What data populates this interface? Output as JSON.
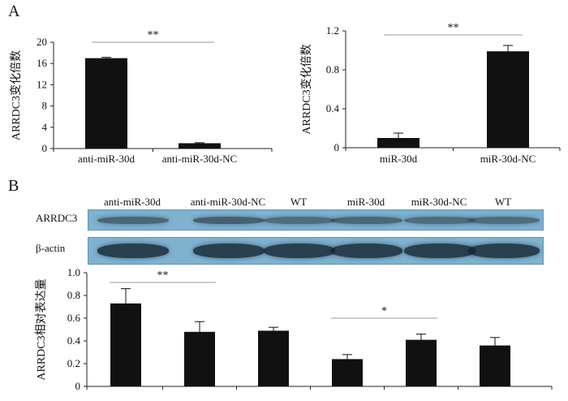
{
  "panel_labels": {
    "a": "A",
    "b": "B"
  },
  "blot": {
    "lanes": [
      "anti-miR-30d",
      "anti-miR-30d-NC",
      "WT",
      "miR-30d",
      "miR-30d-NC",
      "WT"
    ],
    "rows": [
      {
        "label": "ARRDC3",
        "band_intensity": [
          0.55,
          0.6,
          0.5,
          0.55,
          0.5,
          0.5
        ]
      },
      {
        "label": "β-actin",
        "band_intensity": [
          0.85,
          0.85,
          0.85,
          0.85,
          0.85,
          0.85
        ]
      }
    ]
  },
  "chart_data": [
    {
      "type": "bar",
      "panel": "A-left",
      "categories": [
        "anti-miR-30d",
        "anti-miR-30d-NC"
      ],
      "values": [
        17,
        1
      ],
      "errors": [
        0.15,
        0.1
      ],
      "ylabel": "ARRDC3变化倍数",
      "xlabel": "",
      "ylim": [
        0,
        20
      ],
      "yticks": [
        "0",
        "4",
        "8",
        "12",
        "16",
        "20"
      ],
      "significance": [
        {
          "from": 0,
          "to": 1,
          "label": "**"
        }
      ],
      "grid": false
    },
    {
      "type": "bar",
      "panel": "A-right",
      "categories": [
        "miR-30d",
        "miR-30d-NC"
      ],
      "values": [
        0.1,
        0.99
      ],
      "errors": [
        0.05,
        0.06
      ],
      "ylabel": "ARRDC3变化倍数",
      "xlabel": "",
      "ylim": [
        0,
        1.2
      ],
      "yticks": [
        "0",
        "0.4",
        "0.8",
        "1.2"
      ],
      "significance": [
        {
          "from": 0,
          "to": 1,
          "label": "**"
        }
      ],
      "grid": false
    },
    {
      "type": "bar",
      "panel": "B",
      "categories": [
        "anti-miR-30d",
        "anti-miR-30d-NC",
        "WT",
        "miR-30d",
        "miR-30d-NC",
        "WT"
      ],
      "values": [
        0.73,
        0.48,
        0.49,
        0.24,
        0.41,
        0.36
      ],
      "errors": [
        0.13,
        0.09,
        0.03,
        0.04,
        0.05,
        0.07
      ],
      "ylabel": "ARRDC3相对表达量",
      "xlabel": "",
      "ylim": [
        0,
        1.0
      ],
      "yticks": [
        "0",
        "0.2",
        "0.4",
        "0.6",
        "0.8",
        "1.0"
      ],
      "significance": [
        {
          "from": 0,
          "to": 1,
          "label": "**"
        },
        {
          "from": 3,
          "to": 4,
          "label": "*"
        }
      ],
      "grid": false
    }
  ]
}
